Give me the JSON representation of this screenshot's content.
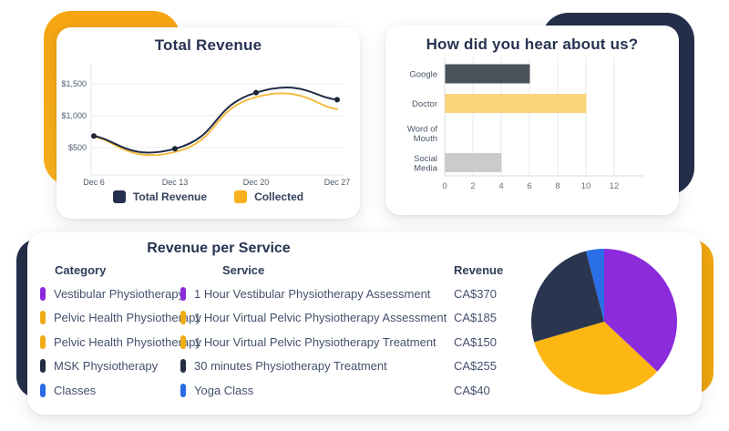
{
  "colors": {
    "brand_navy": "#232e49",
    "brand_yellow": "#f7a815",
    "grid_line": "#e9eaec",
    "axis_text": "#4b5868"
  },
  "chart_data": [
    {
      "id": "total-revenue",
      "type": "line",
      "title": "Total Revenue",
      "x": [
        "Dec 6",
        "Dec 13",
        "Dec 20",
        "Dec 27"
      ],
      "series": [
        {
          "name": "Total Revenue",
          "values": [
            680,
            480,
            1360,
            1250
          ],
          "color": "#1f2b47",
          "points": true
        },
        {
          "name": "Collected",
          "values": [
            670,
            430,
            1290,
            1100
          ],
          "color": "#f2bc42",
          "points": false
        }
      ],
      "y_ticks": [
        {
          "label": "$500",
          "value": 500
        },
        {
          "label": "$1,000",
          "value": 1000
        },
        {
          "label": "$1,500",
          "value": 1500
        }
      ],
      "ylim": [
        70,
        1755
      ],
      "grid": "horizontal",
      "legend_position": "bottom",
      "curve": "smooth"
    },
    {
      "id": "hear-about-us",
      "type": "bar",
      "orientation": "horizontal",
      "title": "How did you hear about us?",
      "categories": [
        "Google",
        "Doctor",
        "Word of Mouth",
        "Social Media"
      ],
      "category_label_lines": [
        [
          "Google"
        ],
        [
          "Doctor"
        ],
        [
          "Word of",
          "Mouth"
        ],
        [
          "Social",
          "Media"
        ]
      ],
      "values": [
        6,
        10,
        0,
        4
      ],
      "bar_colors": [
        "#4a5159",
        "#fad579",
        "#c9cbcd",
        "#c9cbcd"
      ],
      "x_ticks": [
        0,
        2,
        4,
        6,
        8,
        10,
        12
      ],
      "xlim": [
        0,
        14
      ],
      "grid": "vertical",
      "legend_position": "none"
    },
    {
      "id": "revenue-per-service-pie",
      "type": "pie",
      "title": "Revenue per Service",
      "start_angle_deg": -90,
      "direction": "clockwise",
      "slices": [
        {
          "label": "Vestibular Physiotherapy",
          "value": 370,
          "color": "#8c2bdc"
        },
        {
          "label": "Pelvic Health Physiotherapy",
          "value": 335,
          "color": "#fcb712"
        },
        {
          "label": "MSK Physiotherapy",
          "value": 255,
          "color": "#2a3550"
        },
        {
          "label": "Classes",
          "value": 40,
          "color": "#2b6fe8"
        }
      ]
    }
  ],
  "revenue_table": {
    "title": "Revenue per Service",
    "headers": {
      "category": "Category",
      "service": "Service",
      "revenue": "Revenue"
    },
    "rows": [
      {
        "category": "Vestibular Physiotherapy",
        "service": "1 Hour Vestibular Physiotherapy Assessment",
        "revenue": "CA$370",
        "marker_color": "#8c2bdc"
      },
      {
        "category": "Pelvic Health Physiotherapy",
        "service": "1 Hour Virtual Pelvic Physiotherapy Assessment",
        "revenue": "CA$185",
        "marker_color": "#f0ac14"
      },
      {
        "category": "Pelvic Health Physiotherapy",
        "service": "1 Hour Virtual Pelvic Physiotherapy Treatment",
        "revenue": "CA$150",
        "marker_color": "#f0ac14"
      },
      {
        "category": "MSK Physiotherapy",
        "service": "30 minutes Physiotherapy Treatment",
        "revenue": "CA$255",
        "marker_color": "#232c43"
      },
      {
        "category": "Classes",
        "service": "Yoga Class",
        "revenue": "CA$40",
        "marker_color": "#2b6be6"
      }
    ]
  }
}
